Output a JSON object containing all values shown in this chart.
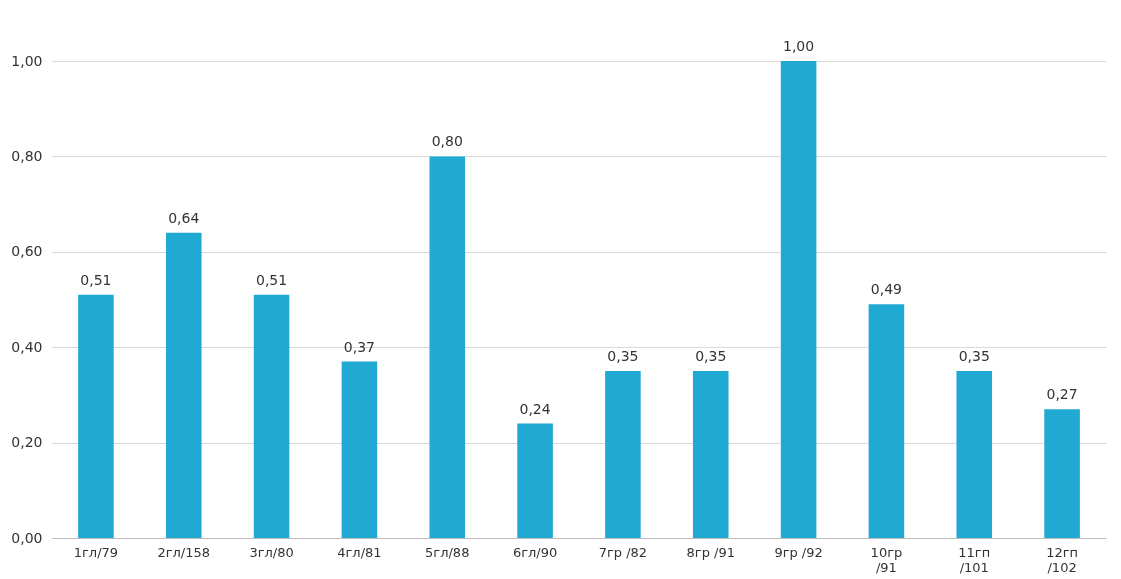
{
  "chart_data": {
    "type": "bar",
    "categories": [
      "1гл/79",
      "2гл/158",
      "3гл/80",
      "4гл/81",
      "5гл/88",
      "6гл/90",
      "7гр /82",
      "8гр /91",
      "9гр /92",
      "10гр /91",
      "11гп /101",
      "12гп /102"
    ],
    "values": [
      0.51,
      0.64,
      0.51,
      0.37,
      0.8,
      0.24,
      0.35,
      0.35,
      1.0,
      0.49,
      0.35,
      0.27
    ],
    "value_labels": [
      "0,51",
      "0,64",
      "0,51",
      "0,37",
      "0,80",
      "0,24",
      "0,35",
      "0,35",
      "1,00",
      "0,49",
      "0,35",
      "0,27"
    ],
    "color": "#1fa9d3",
    "ylim": [
      0,
      1
    ],
    "yticks": [
      {
        "value": 0,
        "label": "0,00"
      },
      {
        "value": 0.2,
        "label": "0,20"
      },
      {
        "value": 0.4,
        "label": "0,40"
      },
      {
        "value": 0.6,
        "label": "0,60"
      },
      {
        "value": 0.8,
        "label": "0,80"
      },
      {
        "value": 1,
        "label": "1,00"
      }
    ],
    "grid": "y"
  }
}
